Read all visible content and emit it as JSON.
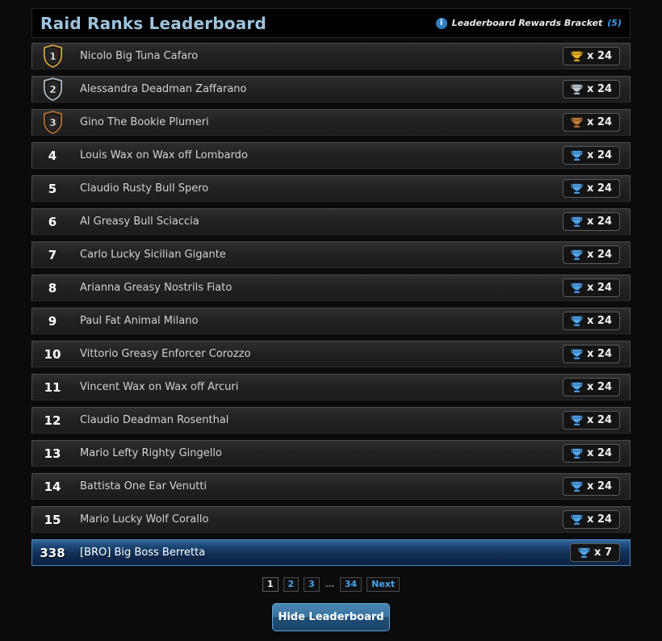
{
  "header": {
    "title": "Raid Ranks Leaderboard",
    "info_icon_glyph": "i",
    "rewards_label": "Leaderboard Rewards Bracket",
    "rewards_count": "(5)"
  },
  "rows": [
    {
      "rank": "1",
      "name": "Nicolo Big Tuna Cafaro",
      "trophy": "gold",
      "count": "x 24",
      "shield": "gold",
      "highlighted": false
    },
    {
      "rank": "2",
      "name": "Alessandra Deadman Zaffarano",
      "trophy": "silver",
      "count": "x 24",
      "shield": "silver",
      "highlighted": false
    },
    {
      "rank": "3",
      "name": "Gino The Bookie Plumeri",
      "trophy": "bronze",
      "count": "x 24",
      "shield": "bronze",
      "highlighted": false
    },
    {
      "rank": "4",
      "name": "Louis Wax on Wax off Lombardo",
      "trophy": "blue",
      "count": "x 24",
      "shield": null,
      "highlighted": false
    },
    {
      "rank": "5",
      "name": "Claudio Rusty Bull Spero",
      "trophy": "blue",
      "count": "x 24",
      "shield": null,
      "highlighted": false
    },
    {
      "rank": "6",
      "name": "Al Greasy Bull Sciaccia",
      "trophy": "blue",
      "count": "x 24",
      "shield": null,
      "highlighted": false
    },
    {
      "rank": "7",
      "name": "Carlo Lucky Sicilian Gigante",
      "trophy": "blue",
      "count": "x 24",
      "shield": null,
      "highlighted": false
    },
    {
      "rank": "8",
      "name": "Arianna Greasy Nostrils Fiato",
      "trophy": "blue",
      "count": "x 24",
      "shield": null,
      "highlighted": false
    },
    {
      "rank": "9",
      "name": "Paul Fat Animal Milano",
      "trophy": "blue",
      "count": "x 24",
      "shield": null,
      "highlighted": false
    },
    {
      "rank": "10",
      "name": "Vittorio Greasy Enforcer Corozzo",
      "trophy": "blue",
      "count": "x 24",
      "shield": null,
      "highlighted": false
    },
    {
      "rank": "11",
      "name": "Vincent Wax on Wax off Arcuri",
      "trophy": "blue",
      "count": "x 24",
      "shield": null,
      "highlighted": false
    },
    {
      "rank": "12",
      "name": "Claudio Deadman Rosenthal",
      "trophy": "blue",
      "count": "x 24",
      "shield": null,
      "highlighted": false
    },
    {
      "rank": "13",
      "name": "Mario Lefty Righty Gingello",
      "trophy": "blue",
      "count": "x 24",
      "shield": null,
      "highlighted": false
    },
    {
      "rank": "14",
      "name": "Battista One Ear Venutti",
      "trophy": "blue",
      "count": "x 24",
      "shield": null,
      "highlighted": false
    },
    {
      "rank": "15",
      "name": "Mario Lucky Wolf Corallo",
      "trophy": "blue",
      "count": "x 24",
      "shield": null,
      "highlighted": false
    },
    {
      "rank": "338",
      "name": "[BRO] Big Boss Berretta",
      "trophy": "blue",
      "count": "x 7",
      "shield": null,
      "highlighted": true
    }
  ],
  "pagination": [
    {
      "label": "1",
      "current": true,
      "ellipsis": false
    },
    {
      "label": "2",
      "current": false,
      "ellipsis": false
    },
    {
      "label": "3",
      "current": false,
      "ellipsis": false
    },
    {
      "label": "…",
      "current": false,
      "ellipsis": true
    },
    {
      "label": "34",
      "current": false,
      "ellipsis": false
    },
    {
      "label": "Next",
      "current": false,
      "ellipsis": false
    }
  ],
  "footer": {
    "button_label": "Hide Leaderboard"
  },
  "colors": {
    "title_accent": "#9cc3dc",
    "link_blue": "#3b9ff5",
    "highlight_row_border": "#4c86bd",
    "trophy": {
      "gold": {
        "main": "#f0b429",
        "dark": "#8a6410"
      },
      "silver": {
        "main": "#c3ccd4",
        "dark": "#6d7a85"
      },
      "bronze": {
        "main": "#c47e3e",
        "dark": "#6e401a"
      },
      "blue": {
        "main": "#57a7e8",
        "dark": "#1d5a96"
      }
    },
    "shield": {
      "gold": "#c89b3c",
      "silver": "#a8b2bc",
      "bronze": "#a96a31"
    }
  }
}
